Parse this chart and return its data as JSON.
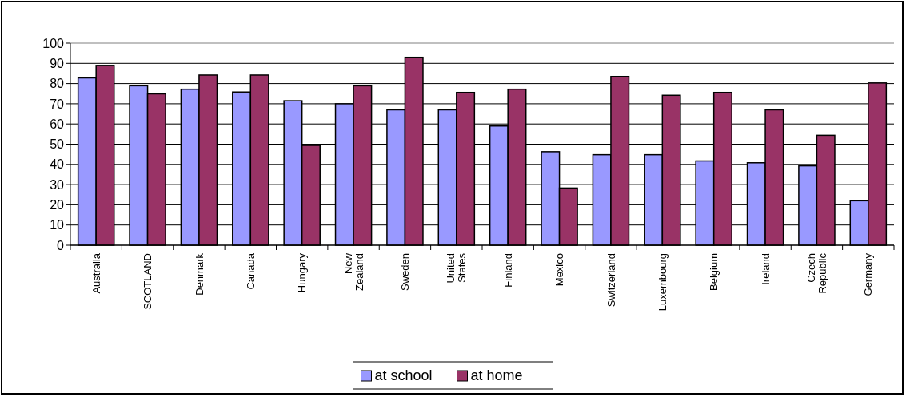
{
  "chart_data": {
    "type": "bar",
    "categories": [
      "Australia",
      "SCOTLAND",
      "Denmark",
      "Canada",
      "Hungary",
      "New Zealand",
      "Sweden",
      "United States",
      "Finland",
      "Mexico",
      "Switzerland",
      "Luxembourg",
      "Belgium",
      "Ireland",
      "Czech Republic",
      "Germany"
    ],
    "series": [
      {
        "name": "at school",
        "color": "#9999ff",
        "values": [
          82.8,
          78.9,
          77.2,
          75.8,
          71.5,
          70,
          67,
          67,
          59,
          46.3,
          44.8,
          44.8,
          41.7,
          40.8,
          39.3,
          22
        ]
      },
      {
        "name": "at home",
        "color": "#993366",
        "values": [
          89,
          74.9,
          84.2,
          84.2,
          49.4,
          78.9,
          93,
          75.6,
          77.2,
          28.3,
          83.5,
          74.2,
          75.6,
          67,
          54.4,
          80.3
        ]
      }
    ],
    "ylim": [
      0,
      100
    ],
    "yticks": [
      0,
      10,
      20,
      30,
      40,
      50,
      60,
      70,
      80,
      90,
      100
    ],
    "grid": "y",
    "legend": "bottom"
  }
}
